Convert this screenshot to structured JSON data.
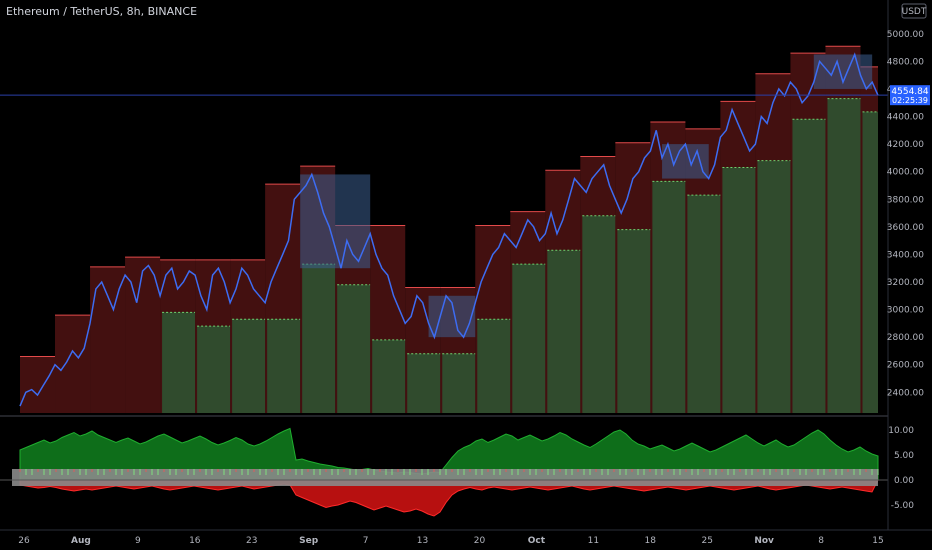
{
  "header": {
    "symbol_title": "Ethereum / TetherUS, 8h, BINANCE",
    "currency_badge": "USDT"
  },
  "price_label": {
    "value": "4554.84",
    "countdown": "02:25:39"
  },
  "colors": {
    "background": "#000000",
    "price_line": "#3d6cf2",
    "resistance_box": "#5a1616",
    "support_box": "#2f4f2f",
    "bright_green": "#0d6b2a",
    "osc_green": "#0e6e1a",
    "osc_red": "#b71010",
    "neutral_band": "#8a8a8a"
  },
  "chart_data": [
    {
      "type": "line",
      "title": "Ethereum / TetherUS, 8h, BINANCE",
      "xlabel": "",
      "ylabel": "",
      "x_ticks": [
        "26",
        "Aug",
        "9",
        "16",
        "23",
        "Sep",
        "7",
        "13",
        "20",
        "Oct",
        "11",
        "18",
        "25",
        "Nov",
        "8",
        "15"
      ],
      "y_ticks": [
        "2400.00",
        "2600.00",
        "2800.00",
        "3000.00",
        "3200.00",
        "3400.00",
        "3600.00",
        "3800.00",
        "4000.00",
        "4200.00",
        "4400.00",
        "4600.00",
        "4800.00",
        "5000.00"
      ],
      "ylim": [
        2250,
        5100
      ],
      "current_price": 4554.84,
      "series": [
        {
          "values": [
            2300,
            2400,
            2420,
            2380,
            2450,
            2520,
            2600,
            2560,
            2620,
            2700,
            2650,
            2720,
            2900,
            3150,
            3200,
            3100,
            3000,
            3150,
            3250,
            3200,
            3050,
            3280,
            3320,
            3250,
            3100,
            3250,
            3300,
            3150,
            3200,
            3280,
            3250,
            3100,
            3000,
            3250,
            3300,
            3200,
            3050,
            3150,
            3300,
            3250,
            3150,
            3100,
            3050,
            3200,
            3300,
            3400,
            3500,
            3800,
            3850,
            3900,
            3980,
            3850,
            3700,
            3600,
            3450,
            3300,
            3500,
            3400,
            3350,
            3450,
            3550,
            3400,
            3300,
            3250,
            3100,
            3000,
            2900,
            2950,
            3100,
            3050,
            2900,
            2800,
            2950,
            3100,
            3050,
            2850,
            2800,
            2900,
            3050,
            3200,
            3300,
            3400,
            3450,
            3550,
            3500,
            3450,
            3550,
            3650,
            3600,
            3500,
            3550,
            3700,
            3550,
            3650,
            3800,
            3950,
            3900,
            3850,
            3950,
            4000,
            4050,
            3900,
            3800,
            3700,
            3800,
            3950,
            4000,
            4100,
            4150,
            4300,
            4100,
            4200,
            4050,
            4150,
            4200,
            4050,
            4150,
            4000,
            3950,
            4050,
            4250,
            4300,
            4450,
            4350,
            4250,
            4150,
            4200,
            4400,
            4350,
            4500,
            4600,
            4550,
            4650,
            4600,
            4500,
            4550,
            4650,
            4800,
            4750,
            4700,
            4800,
            4650,
            4750,
            4850,
            4700,
            4600,
            4650,
            4554
          ]
        }
      ]
    },
    {
      "type": "area",
      "title": "",
      "y_ticks": [
        "10.00",
        "5.00",
        "0.00",
        "-5.00"
      ],
      "ylim": [
        -8,
        12
      ],
      "series": [
        {
          "values": [
            6.0,
            6.5,
            7.0,
            7.5,
            8.0,
            7.4,
            7.8,
            8.5,
            9.0,
            9.5,
            8.8,
            9.2,
            9.8,
            9.0,
            8.5,
            8.0,
            7.5,
            8.0,
            8.4,
            7.8,
            7.2,
            7.6,
            8.2,
            8.8,
            9.2,
            8.6,
            8.0,
            7.4,
            7.8,
            8.3,
            8.8,
            8.2,
            7.5,
            7.0,
            7.4,
            7.9,
            8.5,
            8.0,
            7.2,
            6.8,
            7.2,
            7.8,
            8.5,
            9.2,
            9.8,
            10.3,
            4.0,
            4.2,
            3.8,
            3.5,
            3.2,
            3.0,
            2.8,
            2.5,
            2.4,
            2.2,
            2.0,
            2.1,
            2.3,
            2.0,
            1.8,
            1.6,
            1.5,
            1.4,
            1.6,
            1.5,
            1.3,
            1.2,
            1.4,
            1.6,
            1.5,
            3.0,
            4.5,
            5.8,
            6.5,
            7.0,
            7.8,
            8.2,
            7.5,
            8.0,
            8.6,
            9.2,
            8.8,
            8.0,
            8.5,
            9.0,
            8.4,
            7.8,
            8.2,
            8.8,
            9.5,
            9.0,
            8.2,
            7.6,
            7.0,
            6.5,
            7.2,
            8.0,
            8.8,
            9.6,
            10.0,
            9.2,
            8.0,
            7.2,
            6.8,
            6.2,
            6.6,
            7.0,
            6.4,
            5.8,
            6.2,
            6.8,
            7.4,
            6.8,
            6.2,
            5.6,
            6.0,
            6.6,
            7.2,
            7.8,
            8.4,
            9.0,
            8.2,
            7.4,
            6.8,
            7.4,
            8.0,
            7.2,
            6.6,
            7.0,
            7.8,
            8.6,
            9.4,
            10.0,
            9.2,
            8.0,
            7.0,
            6.2,
            5.6,
            6.0,
            6.6,
            5.8,
            5.2,
            4.8
          ]
        },
        {
          "values": [
            -1.0,
            -1.2,
            -1.4,
            -1.6,
            -1.5,
            -1.3,
            -1.5,
            -1.8,
            -2.0,
            -2.2,
            -2.0,
            -1.8,
            -2.0,
            -1.8,
            -1.6,
            -1.4,
            -1.2,
            -1.4,
            -1.6,
            -1.8,
            -1.6,
            -1.4,
            -1.2,
            -1.5,
            -1.8,
            -2.0,
            -1.8,
            -1.6,
            -1.4,
            -1.2,
            -1.4,
            -1.6,
            -1.8,
            -2.0,
            -1.8,
            -1.6,
            -1.4,
            -1.2,
            -1.5,
            -1.8,
            -1.6,
            -1.4,
            -1.2,
            -1.0,
            -0.8,
            -1.0,
            -3.0,
            -3.5,
            -4.0,
            -4.5,
            -5.0,
            -5.5,
            -5.2,
            -5.0,
            -4.6,
            -4.2,
            -4.5,
            -5.0,
            -5.5,
            -6.0,
            -5.6,
            -5.2,
            -5.6,
            -6.0,
            -6.4,
            -6.2,
            -5.8,
            -6.2,
            -6.8,
            -7.2,
            -6.4,
            -4.5,
            -3.0,
            -2.2,
            -1.8,
            -1.5,
            -1.8,
            -2.0,
            -1.6,
            -1.4,
            -1.6,
            -1.8,
            -2.0,
            -1.8,
            -1.6,
            -1.4,
            -1.6,
            -1.8,
            -2.0,
            -1.8,
            -1.6,
            -1.4,
            -1.2,
            -1.5,
            -1.8,
            -2.0,
            -1.8,
            -1.6,
            -1.4,
            -1.2,
            -1.4,
            -1.6,
            -1.8,
            -2.0,
            -2.2,
            -2.0,
            -1.8,
            -1.6,
            -1.4,
            -1.6,
            -1.8,
            -2.0,
            -1.8,
            -1.6,
            -1.4,
            -1.2,
            -1.4,
            -1.6,
            -1.8,
            -2.0,
            -1.8,
            -1.6,
            -1.4,
            -1.2,
            -1.5,
            -1.8,
            -2.0,
            -1.8,
            -1.6,
            -1.4,
            -1.2,
            -1.0,
            -1.2,
            -1.4,
            -1.6,
            -1.8,
            -1.6,
            -1.4,
            -1.6,
            -1.8,
            -2.0,
            -2.2,
            -2.4
          ]
        }
      ]
    }
  ]
}
